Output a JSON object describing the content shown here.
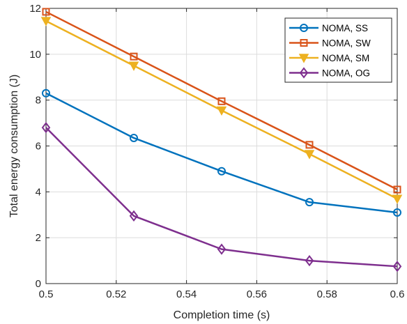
{
  "chart_data": {
    "type": "line",
    "title": "",
    "xlabel": "Completion time (s)",
    "ylabel": "Total energy consumption (J)",
    "xlim": [
      0.5,
      0.6
    ],
    "ylim": [
      0,
      12
    ],
    "xticks": [
      0.5,
      0.52,
      0.54,
      0.56,
      0.58,
      0.6
    ],
    "xtick_labels": [
      "0.5",
      "0.52",
      "0.54",
      "0.56",
      "0.58",
      "0.6"
    ],
    "yticks": [
      0,
      2,
      4,
      6,
      8,
      10,
      12
    ],
    "ytick_labels": [
      "0",
      "2",
      "4",
      "6",
      "8",
      "10",
      "12"
    ],
    "grid": true,
    "legend_position": "top-right",
    "x": [
      0.5,
      0.525,
      0.55,
      0.575,
      0.6
    ],
    "series": [
      {
        "name": "NOMA, SS",
        "values": [
          8.3,
          6.35,
          4.9,
          3.55,
          3.1
        ],
        "color": "#0072BD",
        "marker": "circle"
      },
      {
        "name": "NOMA, SW",
        "values": [
          11.85,
          9.9,
          7.95,
          6.05,
          4.1
        ],
        "color": "#D95319",
        "marker": "square"
      },
      {
        "name": "NOMA, SM",
        "values": [
          11.45,
          9.5,
          7.55,
          5.65,
          3.7
        ],
        "color": "#EDB120",
        "marker": "triangle-down"
      },
      {
        "name": "NOMA, OG",
        "values": [
          6.8,
          2.95,
          1.5,
          1.0,
          0.75
        ],
        "color": "#7E2F8E",
        "marker": "diamond"
      }
    ]
  }
}
